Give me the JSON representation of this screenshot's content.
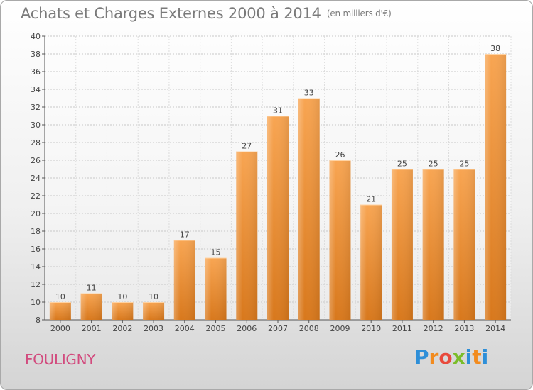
{
  "title": "Achats et Charges Externes 2000 à 2014",
  "unit": "(en milliers d'€)",
  "commune": "FOULIGNY",
  "logo": {
    "letters": [
      "P",
      "r",
      "o",
      "x",
      "i",
      "t",
      "i"
    ],
    "colors": [
      "#2e8fd8",
      "#f28b1e",
      "#e84a3c",
      "#7abd29",
      "#2e8fd8",
      "#f28b1e",
      "#2e8fd8"
    ]
  },
  "chart_data": {
    "type": "bar",
    "categories": [
      "2000",
      "2001",
      "2002",
      "2003",
      "2004",
      "2005",
      "2006",
      "2007",
      "2008",
      "2009",
      "2010",
      "2011",
      "2012",
      "2013",
      "2014"
    ],
    "values": [
      10,
      11,
      10,
      10,
      17,
      15,
      27,
      31,
      33,
      26,
      21,
      25,
      25,
      25,
      38
    ],
    "data_labels": [
      "10",
      "11",
      "10",
      "10",
      "17",
      "15",
      "27",
      "31",
      "33",
      "26",
      "21",
      "25",
      "25",
      "25",
      "38"
    ],
    "yticks": [
      "8",
      "10",
      "12",
      "14",
      "16",
      "18",
      "20",
      "22",
      "24",
      "26",
      "28",
      "30",
      "32",
      "34",
      "36",
      "38",
      "40"
    ],
    "ylim": [
      8,
      40
    ],
    "grid": true,
    "legend": "none",
    "bar_color": "#f5a04a"
  }
}
